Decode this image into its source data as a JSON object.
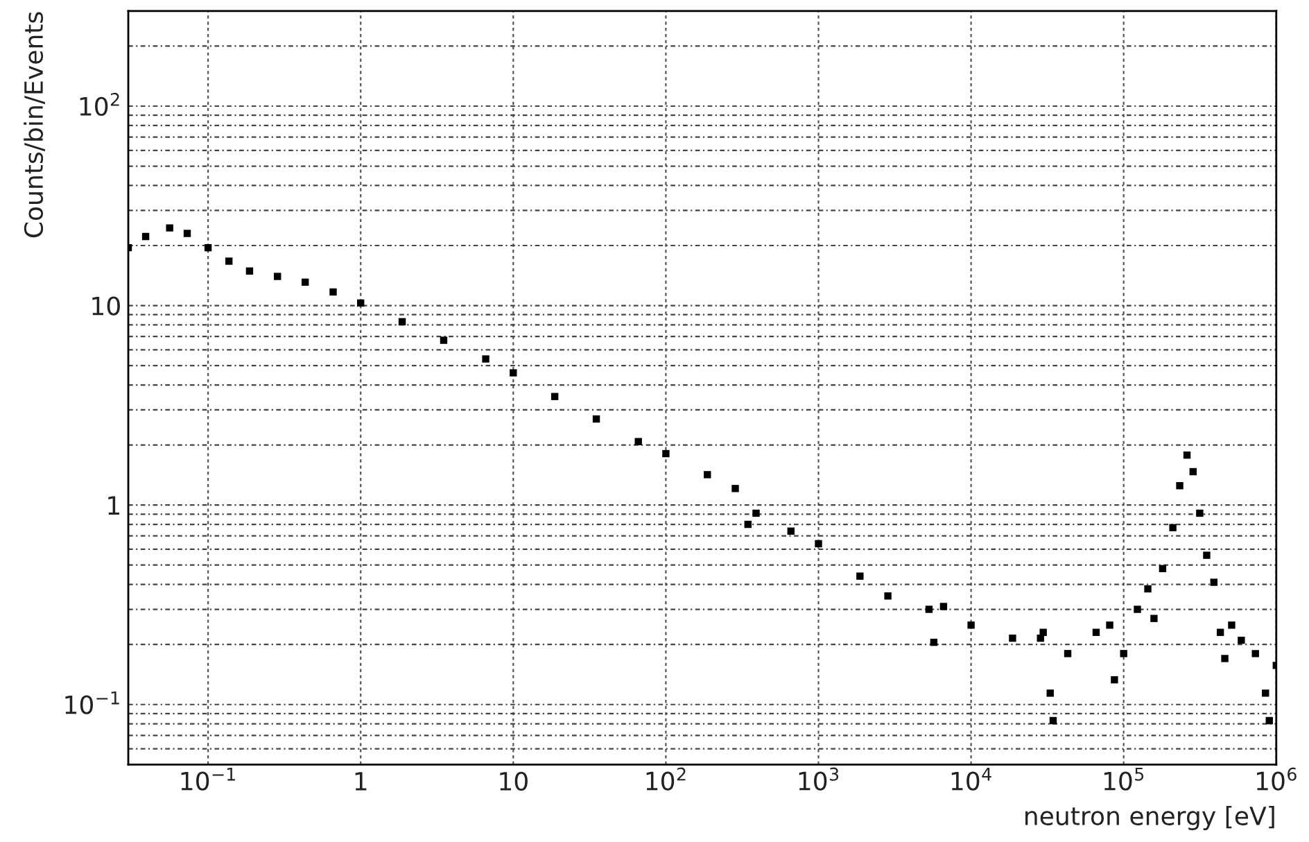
{
  "chart_data": {
    "type": "scatter",
    "xlabel": "neutron energy [eV]",
    "ylabel": "Counts/bin/Events",
    "log": "xy",
    "grid": true,
    "marker": "square",
    "xlim": [
      0.03,
      1000000
    ],
    "ylim": [
      0.05,
      300
    ],
    "xticks": [
      {
        "value": 0.1,
        "label": "10$^{−1}$"
      },
      1,
      10,
      {
        "value": 100,
        "label": "10$^{2}$"
      },
      {
        "value": 1000,
        "label": "10$^{3}$"
      },
      {
        "value": 10000,
        "label": "10$^{4}$"
      },
      {
        "value": 100000,
        "label": "10$^{5}$"
      },
      {
        "value": 1000000,
        "label": "10$^{6}$"
      }
    ],
    "yticks": [
      {
        "value": 0.1,
        "label": "10$^{−1}$"
      },
      1,
      10,
      {
        "value": 100,
        "label": "10$^{2}$"
      }
    ],
    "series": [
      {
        "color": "#000000",
        "x": [
          0.03,
          0.039,
          0.056,
          0.073,
          0.1,
          0.137,
          0.187,
          0.285,
          0.433,
          0.66,
          1,
          1.87,
          3.5,
          6.6,
          10,
          18.7,
          35,
          66,
          100,
          187,
          285,
          345,
          390,
          660,
          1000,
          1870,
          2850,
          5300,
          5700,
          6600,
          10000,
          18700,
          28500,
          29700,
          33000,
          34500,
          43000,
          66000,
          81000,
          87000,
          100000,
          123000,
          144000,
          158000,
          180000,
          210000,
          233000,
          260000,
          285000,
          315000,
          350000,
          390000,
          430000,
          460000,
          510000,
          590000,
          730000,
          850000,
          900000,
          1000000
        ],
        "values": [
          19.5,
          22.2,
          24.5,
          23,
          19.5,
          16.7,
          14.9,
          14,
          13.1,
          11.7,
          10.3,
          8.3,
          6.7,
          5.4,
          4.6,
          3.5,
          2.7,
          2.08,
          1.81,
          1.42,
          1.21,
          0.8,
          0.91,
          0.74,
          0.64,
          0.44,
          0.35,
          0.3,
          0.205,
          0.31,
          0.25,
          0.215,
          0.215,
          0.23,
          0.114,
          0.083,
          0.18,
          0.23,
          0.25,
          0.133,
          0.18,
          0.3,
          0.38,
          0.27,
          0.48,
          0.77,
          1.25,
          1.78,
          1.47,
          0.91,
          0.56,
          0.41,
          0.23,
          0.17,
          0.25,
          0.21,
          0.18,
          0.114,
          0.083,
          0.157
        ]
      }
    ]
  }
}
